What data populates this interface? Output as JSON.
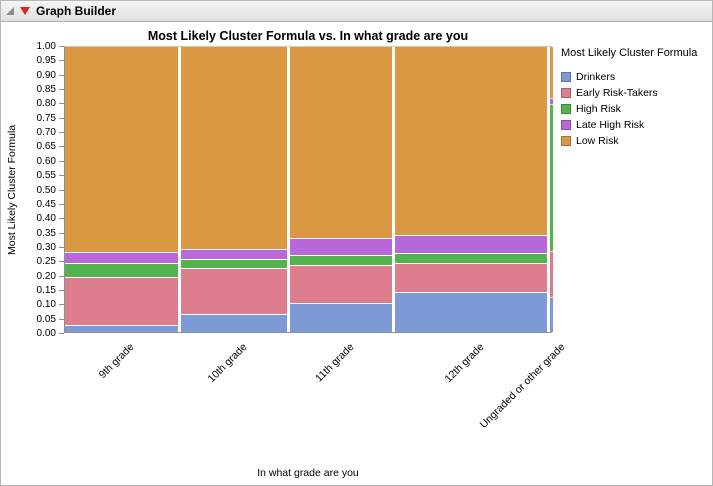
{
  "window": {
    "title": "Graph Builder"
  },
  "chart": {
    "title": "Most Likely Cluster Formula vs. In what grade are you",
    "y_axis_label": "Most Likely Cluster Formula",
    "x_axis_label": "In what grade are you"
  },
  "legend": {
    "title": "Most Likely Cluster Formula"
  },
  "chart_data": {
    "type": "mosaic",
    "title": "Most Likely Cluster Formula vs. In what grade are you",
    "xlabel": "In what grade are you",
    "ylabel": "Most Likely Cluster Formula",
    "ylim": [
      0,
      1
    ],
    "y_tick_step": 0.05,
    "y_tick_decimals": 2,
    "grid": false,
    "legend_position": "right",
    "categories": [
      "9th grade",
      "10th grade",
      "11th grade",
      "12th grade",
      "Ungraded or other grade"
    ],
    "column_widths": [
      0.237,
      0.223,
      0.214,
      0.32,
      0.006
    ],
    "series": [
      {
        "name": "Drinkers",
        "color": "#7D9AD6",
        "values": [
          0.02,
          0.06,
          0.1,
          0.14,
          0.12
        ]
      },
      {
        "name": "Early Risk-Takers",
        "color": "#DD7E8E",
        "values": [
          0.17,
          0.16,
          0.13,
          0.1,
          0.16
        ]
      },
      {
        "name": "High Risk",
        "color": "#53B34F",
        "values": [
          0.045,
          0.03,
          0.035,
          0.03,
          0.52
        ]
      },
      {
        "name": "Late High Risk",
        "color": "#B968DA",
        "values": [
          0.035,
          0.03,
          0.055,
          0.06,
          0.02
        ]
      },
      {
        "name": "Low Risk",
        "color": "#DB9843",
        "values": [
          0.73,
          0.72,
          0.68,
          0.67,
          0.18
        ]
      }
    ]
  }
}
